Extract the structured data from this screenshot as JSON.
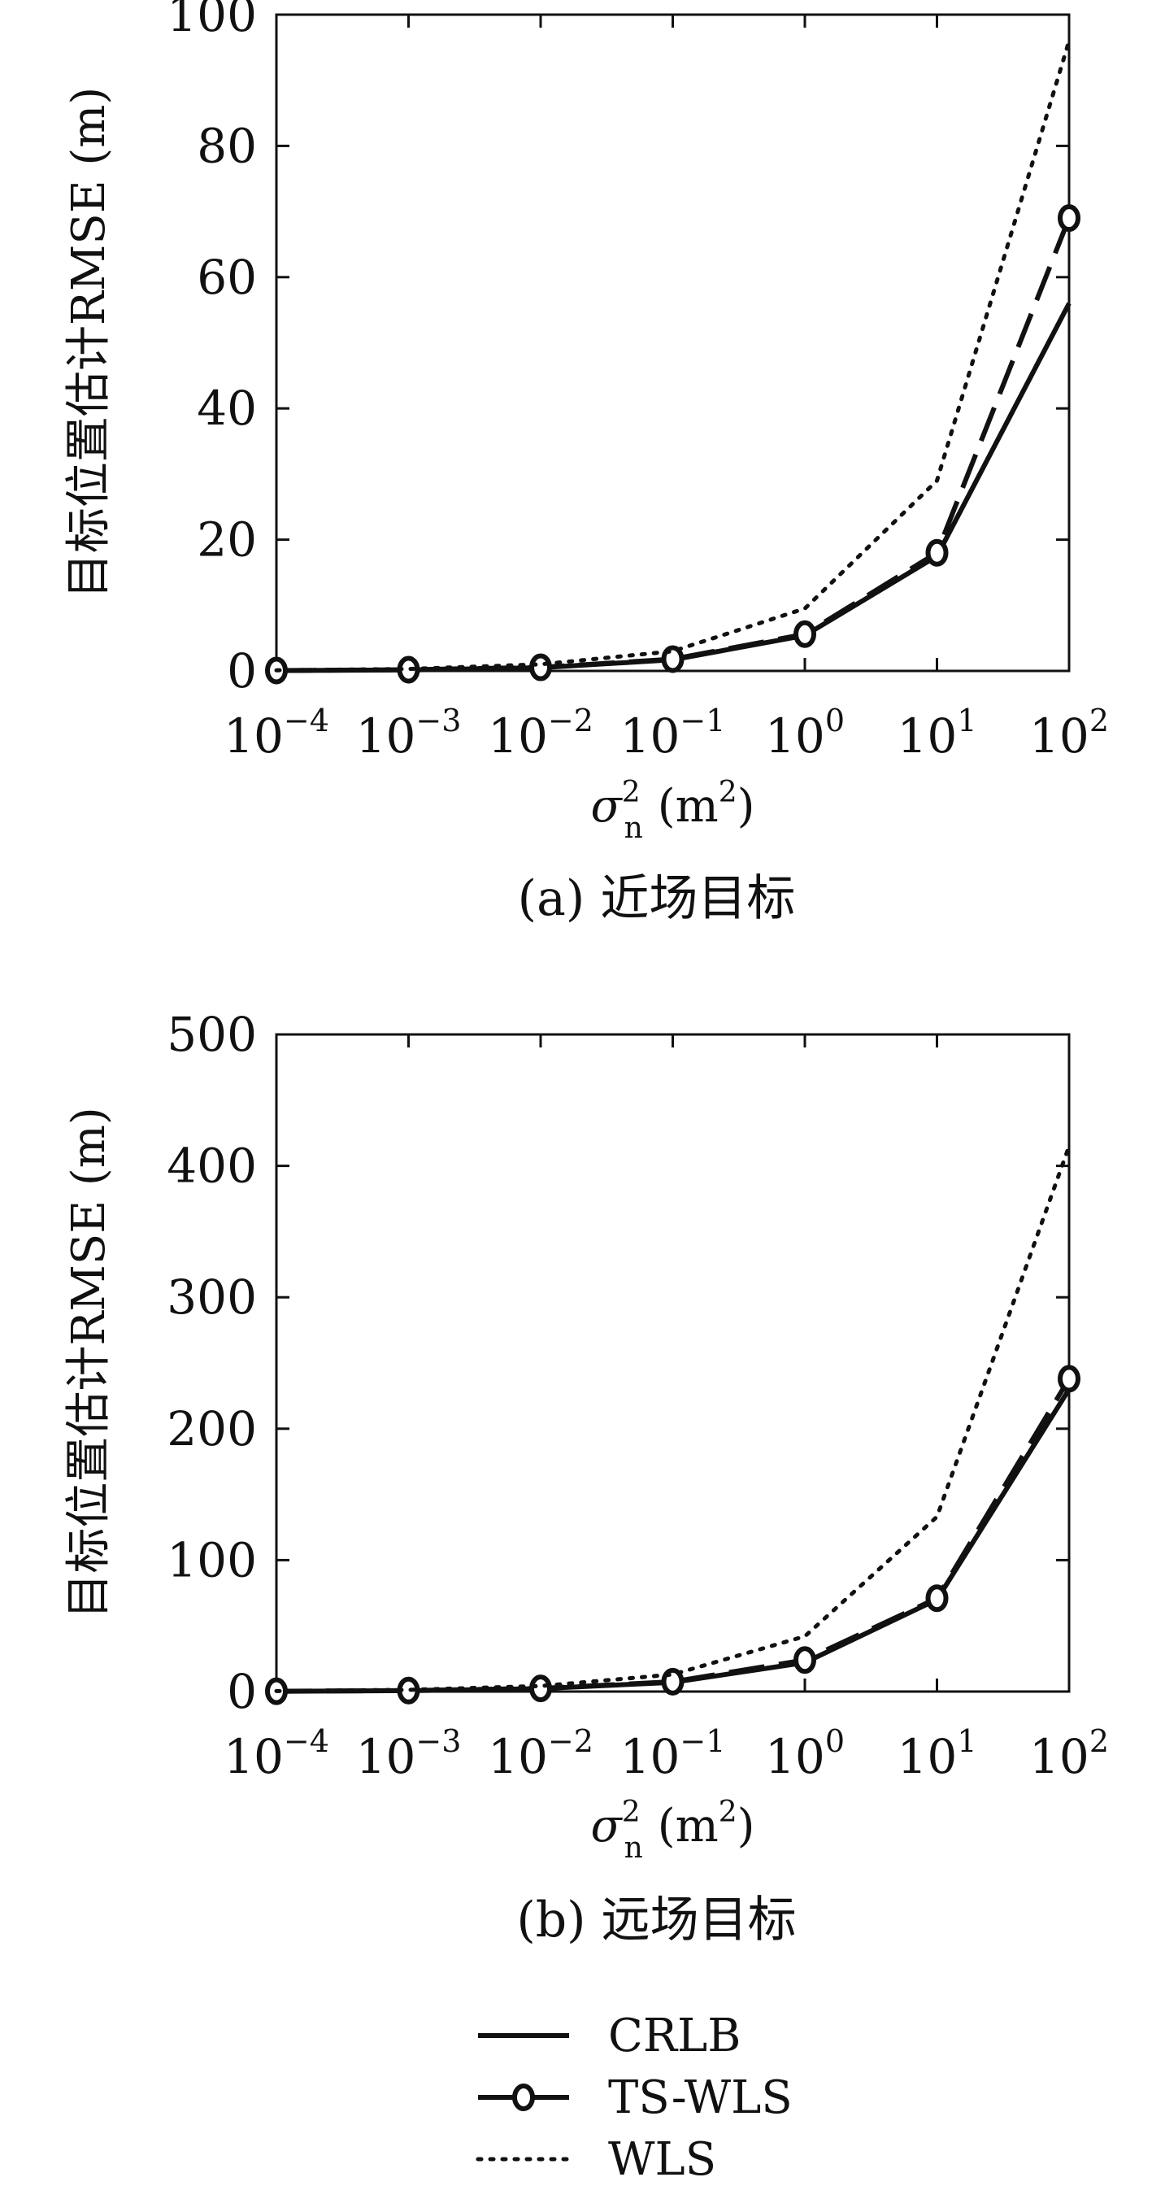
{
  "chart_data": [
    {
      "type": "line",
      "caption": "(a) 近场目标",
      "ylabel": "目标位置估计RMSE (m)",
      "xlabel_main": "σ",
      "xlabel_sup": "2",
      "xlabel_sub": "n",
      "xlabel_unit": "(m",
      "xlabel_unit_sup": "2",
      "xlabel_close": ")",
      "x": [
        -4,
        -3,
        -2,
        -1,
        0,
        1,
        2
      ],
      "xscale": "log",
      "xticks": [
        {
          "base": "10",
          "exp": "−4"
        },
        {
          "base": "10",
          "exp": "−3"
        },
        {
          "base": "10",
          "exp": "−2"
        },
        {
          "base": "10",
          "exp": "−1"
        },
        {
          "base": "10",
          "exp": "0"
        },
        {
          "base": "10",
          "exp": "1"
        },
        {
          "base": "10",
          "exp": "2"
        }
      ],
      "ylim": [
        0,
        100
      ],
      "yticks": [
        "0",
        "20",
        "40",
        "60",
        "80",
        "100"
      ],
      "ytick_values": [
        0,
        20,
        40,
        60,
        80,
        100
      ],
      "series": [
        {
          "name": "CRLB",
          "style": "solid",
          "values": [
            0.05,
            0.15,
            0.5,
            1.7,
            5.4,
            17.5,
            56
          ]
        },
        {
          "name": "TS-WLS",
          "style": "dashed-circle",
          "values": [
            0.06,
            0.18,
            0.55,
            1.8,
            5.6,
            18.0,
            69
          ]
        },
        {
          "name": "WLS",
          "style": "dotted",
          "values": [
            0.1,
            0.3,
            1.0,
            3.0,
            9.5,
            29,
            96
          ]
        }
      ]
    },
    {
      "type": "line",
      "caption": "(b) 远场目标",
      "ylabel": "目标位置估计RMSE (m)",
      "xlabel_main": "σ",
      "xlabel_sup": "2",
      "xlabel_sub": "n",
      "xlabel_unit": "(m",
      "xlabel_unit_sup": "2",
      "xlabel_close": ")",
      "x": [
        -4,
        -3,
        -2,
        -1,
        0,
        1,
        2
      ],
      "xscale": "log",
      "xticks": [
        {
          "base": "10",
          "exp": "−4"
        },
        {
          "base": "10",
          "exp": "−3"
        },
        {
          "base": "10",
          "exp": "−2"
        },
        {
          "base": "10",
          "exp": "−1"
        },
        {
          "base": "10",
          "exp": "0"
        },
        {
          "base": "10",
          "exp": "1"
        },
        {
          "base": "10",
          "exp": "2"
        }
      ],
      "ylim": [
        0,
        500
      ],
      "yticks": [
        "0",
        "100",
        "200",
        "300",
        "400",
        "500"
      ],
      "ytick_values": [
        0,
        100,
        200,
        300,
        400,
        500
      ],
      "series": [
        {
          "name": "CRLB",
          "style": "solid",
          "values": [
            0.2,
            0.7,
            2.2,
            7,
            22,
            70,
            230
          ]
        },
        {
          "name": "TS-WLS",
          "style": "dashed-circle",
          "values": [
            0.25,
            0.75,
            2.4,
            7.5,
            24,
            71,
            238
          ]
        },
        {
          "name": "WLS",
          "style": "dotted",
          "values": [
            0.4,
            1.3,
            4.2,
            13,
            42,
            133,
            415
          ]
        }
      ]
    }
  ],
  "legend": {
    "placement": "bottom-center",
    "items": [
      {
        "label": "CRLB",
        "style": "solid"
      },
      {
        "label": "TS-WLS",
        "style": "dashed-circle"
      },
      {
        "label": "WLS",
        "style": "dotted"
      }
    ]
  }
}
